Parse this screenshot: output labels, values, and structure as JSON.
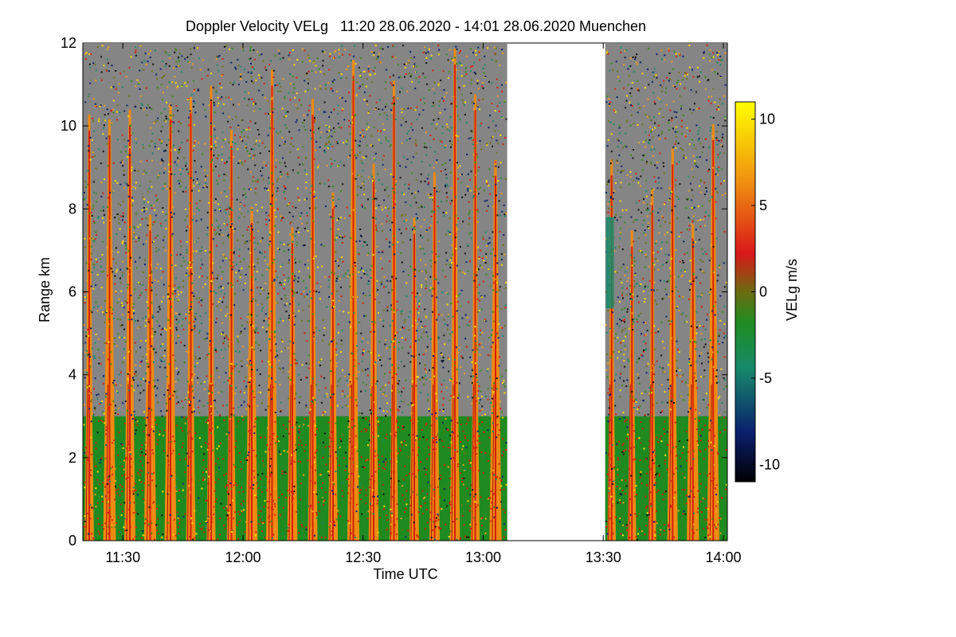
{
  "chart_data": {
    "type": "heatmap",
    "title": "Doppler Velocity VELg   11:20 28.06.2020 - 14:01 28.06.2020 Muenchen",
    "xlabel": "Time UTC",
    "ylabel": "Range km",
    "colorbar_label": "VELg m/s",
    "x_range_min": [
      680,
      841
    ],
    "y_range_km": [
      0,
      12
    ],
    "color_range": [
      -11,
      11
    ],
    "x_ticks": [
      {
        "min": 690,
        "label": "11:30"
      },
      {
        "min": 720,
        "label": "12:00"
      },
      {
        "min": 750,
        "label": "12:30"
      },
      {
        "min": 780,
        "label": "13:00"
      },
      {
        "min": 810,
        "label": "13:30"
      },
      {
        "min": 840,
        "label": "14:00"
      }
    ],
    "y_ticks": [
      0,
      2,
      4,
      6,
      8,
      10,
      12
    ],
    "colorbar_ticks": [
      10,
      5,
      0,
      -5,
      -10
    ],
    "segments": [
      {
        "name": "before-gap",
        "start_min": 680,
        "end_min": 786
      },
      {
        "name": "after-gap",
        "start_min": 810.5,
        "end_min": 841
      }
    ],
    "data_gap": {
      "start_min": 786,
      "end_min": 810.5
    },
    "boundary_layer_top_km": 3,
    "plume_top_km": 12,
    "legend": "colorbar-right",
    "grid": false
  }
}
